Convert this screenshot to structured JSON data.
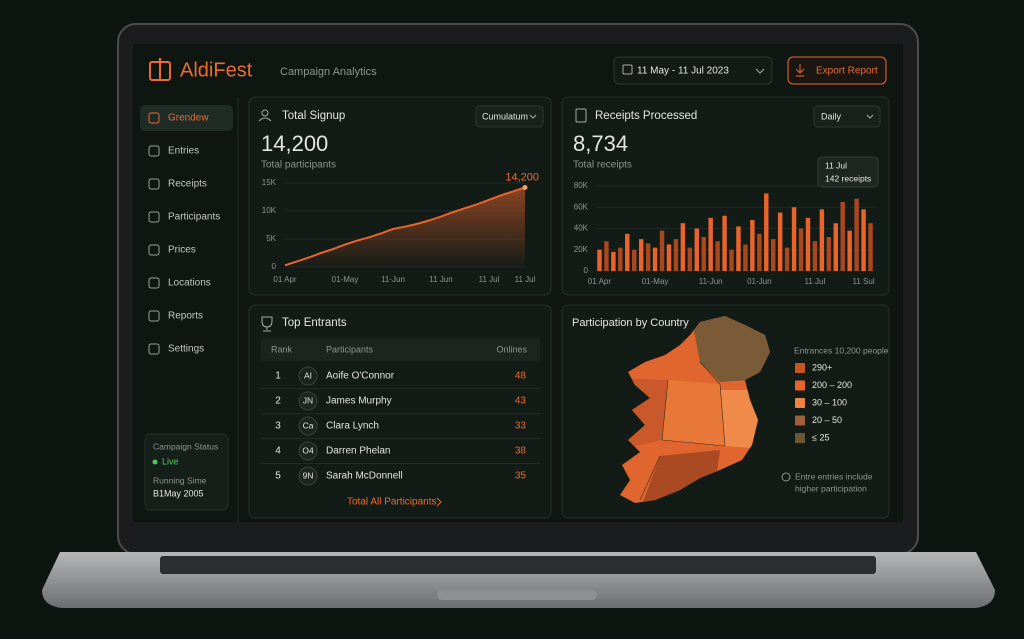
{
  "header": {
    "logo": "AldiFest",
    "subtitle": "Campaign Analytics",
    "date_range": "11 May - 11 Jul 2023",
    "export": "Export Report"
  },
  "sidebar": {
    "items": [
      "Grendew",
      "Entries",
      "Receipts",
      "Participants",
      "Prices",
      "Locations",
      "Reports",
      "Settings"
    ],
    "status_label": "Campaign Status",
    "status_value": "Live",
    "running_label": "Running Sime",
    "running_value": "B1May 2005"
  },
  "signup_card": {
    "title": "Total Signup",
    "dropdown": "Cumulatum",
    "total": "14,200",
    "caption": "Total participants"
  },
  "receipts_card": {
    "title": "Receipts Processed",
    "dropdown": "Daily",
    "total": "8,734",
    "caption": "Total receipts",
    "tooltip_title": "11 Jul",
    "tooltip_text": "142 receipts"
  },
  "chart_data": [
    {
      "type": "line",
      "color": "#e8642c",
      "categories": [
        "01 Apr",
        null,
        null,
        null,
        null,
        "01-May",
        null,
        null,
        null,
        "11-Jun",
        null,
        null,
        null,
        "11 Jun",
        null,
        null,
        null,
        "11 Jul",
        null,
        null,
        "11 Jul"
      ],
      "values": [
        300,
        1000,
        1700,
        2500,
        3200,
        4000,
        4700,
        5300,
        6000,
        6800,
        7200,
        7700,
        8300,
        9000,
        9800,
        10500,
        11200,
        12000,
        12800,
        13500,
        14200
      ],
      "value_labels": [
        null,
        null,
        null,
        null,
        null,
        null,
        null,
        null,
        null,
        null,
        null,
        null,
        null,
        null,
        null,
        null,
        null,
        null,
        null,
        null,
        "14,200"
      ],
      "ylim": [
        0,
        15000
      ],
      "yticks": [
        0,
        {
          "value": 5000,
          "label": "5K"
        },
        {
          "value": 10000,
          "label": "10K"
        },
        {
          "value": 15000,
          "label": "15K"
        }
      ]
    },
    {
      "type": "bar",
      "colors": [
        "#e8642c",
        "#a9471f"
      ],
      "categories": [
        "01 Apr",
        null,
        null,
        null,
        null,
        null,
        null,
        null,
        "01-May",
        null,
        null,
        null,
        null,
        null,
        null,
        null,
        "11-Jun",
        null,
        null,
        null,
        null,
        null,
        null,
        "01-Jun",
        null,
        null,
        null,
        null,
        null,
        null,
        null,
        "11 Jul",
        null,
        null,
        null,
        null,
        null,
        null,
        "11 Sul",
        null
      ],
      "values": [
        20000,
        28000,
        18000,
        22000,
        35000,
        20000,
        30000,
        26000,
        22000,
        38000,
        25000,
        30000,
        45000,
        22000,
        40000,
        32000,
        50000,
        28000,
        52000,
        20000,
        42000,
        25000,
        48000,
        35000,
        73000,
        30000,
        55000,
        22000,
        60000,
        40000,
        50000,
        28000,
        58000,
        32000,
        45000,
        65000,
        38000,
        68000,
        58000,
        45000
      ],
      "ylim": [
        0,
        80000
      ],
      "yticks": [
        0,
        {
          "value": 20000,
          "label": "20K"
        },
        {
          "value": 40000,
          "label": "40K"
        },
        {
          "value": 60000,
          "label": "60K"
        },
        {
          "value": 80000,
          "label": "80K"
        }
      ]
    }
  ],
  "entrants": {
    "title": "Top Entrants",
    "columns": [
      "Rank",
      "Participants",
      "Onlines"
    ],
    "rows": [
      [
        "1",
        "AI",
        "Aoife O'Connor",
        "48"
      ],
      [
        "2",
        "JN",
        "James Murphy",
        "43"
      ],
      [
        "3",
        "Ca",
        "Clara Lynch",
        "33"
      ],
      [
        "4",
        "O4",
        "Darren Phelan",
        "38"
      ],
      [
        "5",
        "9N",
        "Sarah McDonnell",
        "35"
      ]
    ],
    "footer": "Total All Participants"
  },
  "map": {
    "title": "Participation by Country",
    "legend_title": "Entrances 10,200 people",
    "legend": [
      {
        "label": "290+",
        "color": "#c4581f"
      },
      {
        "label": "200 – 200",
        "color": "#e8642c"
      },
      {
        "label": "30 – 100",
        "color": "#f0833f"
      },
      {
        "label": "20 – 50",
        "color": "#a0603a"
      },
      {
        "label": "≤ 25",
        "color": "#6e5534"
      }
    ],
    "note_lines": [
      "Entre entries include",
      "higher participation"
    ]
  }
}
